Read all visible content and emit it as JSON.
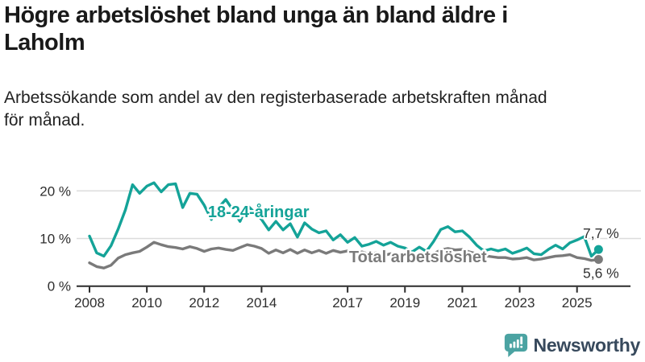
{
  "header": {
    "title": "Högre arbetslöshet bland unga än bland äldre i Laholm",
    "subtitle": "Arbetssökande som andel av den registerbaserade arbetskraften månad för månad."
  },
  "chart_data": {
    "type": "line",
    "title": "Högre arbetslöshet bland unga än bland äldre i Laholm",
    "subtitle": "Arbetssökande som andel av den registerbaserade arbetskraften månad för månad.",
    "unit": "%",
    "grid": "horizontal",
    "legend_position": "inline-labels",
    "xlim": [
      2007.55,
      2026.8
    ],
    "ylim": [
      0,
      23
    ],
    "x_axis": {
      "ticks": [
        {
          "year": 2008,
          "label": "2008"
        },
        {
          "year": 2010,
          "label": "2010"
        },
        {
          "year": 2012,
          "label": "2012"
        },
        {
          "year": 2014,
          "label": "2014"
        },
        {
          "year": 2017,
          "label": "2017"
        },
        {
          "year": 2019,
          "label": "2019"
        },
        {
          "year": 2021,
          "label": "2021"
        },
        {
          "year": 2023,
          "label": "2023"
        },
        {
          "year": 2025,
          "label": "2025"
        }
      ]
    },
    "y_axis": {
      "ticks": [
        {
          "value": 0,
          "label": "0 %"
        },
        {
          "value": 10,
          "label": "10 %"
        },
        {
          "value": 20,
          "label": "20 %"
        }
      ]
    },
    "series": [
      {
        "name": "18-24-åringar",
        "line_name": "youth-line",
        "color": "#14a398",
        "x_start": 2008.0,
        "x_step": 0.25,
        "values": [
          10.5,
          7.0,
          6.3,
          8.5,
          12.0,
          16.0,
          21.3,
          19.5,
          21.0,
          21.7,
          19.8,
          21.3,
          21.5,
          16.5,
          19.5,
          19.3,
          17.0,
          14.0,
          16.5,
          18.2,
          16.0,
          13.6,
          17.0,
          15.5,
          14.0,
          11.8,
          13.6,
          11.8,
          13.1,
          10.3,
          13.3,
          12.0,
          11.2,
          11.6,
          9.7,
          10.8,
          9.2,
          10.2,
          8.4,
          8.8,
          9.4,
          8.6,
          9.2,
          8.4,
          8.0,
          7.2,
          8.2,
          7.3,
          9.4,
          11.9,
          12.5,
          11.4,
          11.6,
          10.3,
          8.6,
          7.4,
          7.8,
          7.4,
          7.8,
          6.9,
          7.4,
          8.0,
          6.8,
          6.6,
          7.7,
          8.6,
          7.8,
          9.1,
          9.7,
          10.4,
          6.3,
          7.7
        ],
        "end_value": 7.7,
        "end_value_label": "7,7 %",
        "end_label_side": "above",
        "name_label_pos": {
          "year": 2012.13,
          "value": 14.5
        }
      },
      {
        "name": "Total arbetslöshet",
        "line_name": "total-line",
        "color": "#7a7a7a",
        "x_start": 2008.0,
        "x_step": 0.25,
        "values": [
          4.9,
          4.1,
          3.8,
          4.4,
          5.9,
          6.6,
          7.0,
          7.3,
          8.2,
          9.2,
          8.7,
          8.3,
          8.1,
          7.8,
          8.3,
          7.9,
          7.3,
          7.8,
          8.0,
          7.7,
          7.5,
          8.1,
          8.7,
          8.4,
          7.9,
          6.9,
          7.6,
          7.0,
          7.7,
          6.9,
          7.6,
          7.0,
          7.5,
          6.9,
          7.5,
          7.1,
          7.4,
          6.7,
          7.2,
          6.7,
          7.0,
          6.4,
          6.8,
          6.3,
          6.5,
          6.0,
          6.3,
          5.9,
          6.8,
          7.6,
          7.9,
          7.6,
          7.7,
          7.2,
          6.8,
          6.4,
          6.2,
          6.0,
          6.0,
          5.7,
          5.8,
          6.0,
          5.5,
          5.7,
          6.0,
          6.3,
          6.4,
          6.6,
          6.0,
          5.8,
          5.4,
          5.6
        ],
        "end_value": 5.6,
        "end_value_label": "5,6 %",
        "end_label_side": "below",
        "name_label_pos": {
          "year": 2017.05,
          "value": 5.0
        }
      }
    ]
  },
  "footer": {
    "brand": "Newsworthy"
  },
  "colors": {
    "accent_teal": "#14a398",
    "line_gray": "#7a7a7a",
    "grid": "#dcdcdc",
    "axis": "#2b2b2b",
    "logo_teal": "#4ba3a2",
    "brand_navy": "#37495c"
  }
}
